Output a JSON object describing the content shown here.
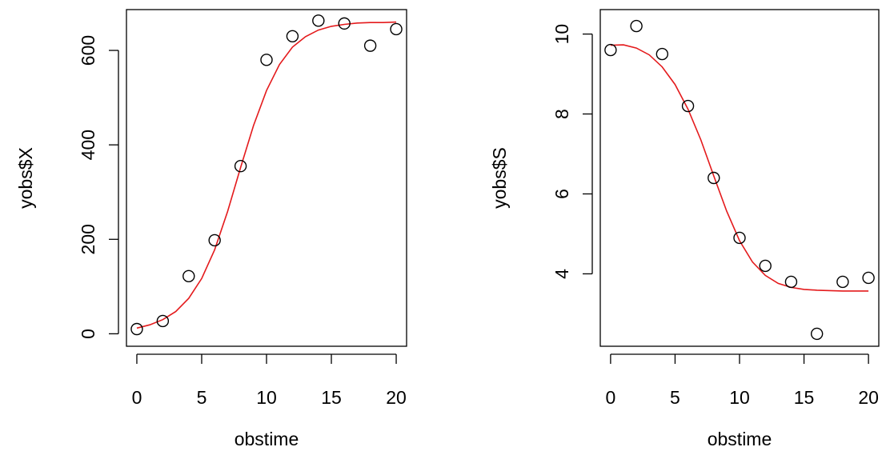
{
  "colors": {
    "fit": "#e41a1c",
    "points": "#000000"
  },
  "chart_data": [
    {
      "type": "scatter",
      "title": "",
      "xlabel": "obstime",
      "ylabel": "yobs$X",
      "xlim": [
        0,
        20
      ],
      "ylim": [
        0,
        660
      ],
      "x_ticks": [
        0,
        5,
        10,
        15,
        20
      ],
      "y_ticks": [
        0,
        200,
        400,
        600
      ],
      "grid": false,
      "legend": "none",
      "series": [
        {
          "kind": "points",
          "x": [
            0,
            2,
            4,
            6,
            8,
            10,
            12,
            14,
            16,
            18,
            20
          ],
          "y": [
            10,
            27,
            122,
            198,
            355,
            580,
            630,
            663,
            657,
            610,
            645
          ]
        },
        {
          "kind": "line",
          "color": "#e41a1c",
          "x": [
            0,
            1,
            2,
            3,
            4,
            5,
            6,
            7,
            8,
            9,
            10,
            11,
            12,
            13,
            14,
            15,
            16,
            17,
            18,
            19,
            20
          ],
          "y": [
            12,
            19,
            30,
            47,
            75,
            117,
            178,
            259,
            352,
            441,
            515,
            570,
            607,
            629,
            643,
            651,
            655,
            658,
            659,
            659,
            660
          ]
        }
      ]
    },
    {
      "type": "scatter",
      "title": "",
      "xlabel": "obstime",
      "ylabel": "yobs$S",
      "xlim": [
        0,
        20
      ],
      "ylim": [
        2.5,
        10.3
      ],
      "x_ticks": [
        0,
        5,
        10,
        15,
        20
      ],
      "y_ticks": [
        4,
        6,
        8,
        10
      ],
      "grid": false,
      "legend": "none",
      "series": [
        {
          "kind": "points",
          "x": [
            0,
            2,
            4,
            6,
            8,
            10,
            12,
            14,
            16,
            18,
            20
          ],
          "y": [
            9.6,
            10.2,
            9.5,
            8.2,
            6.4,
            4.9,
            4.2,
            3.8,
            2.5,
            3.8,
            3.9
          ]
        },
        {
          "kind": "line",
          "color": "#e41a1c",
          "x": [
            0,
            1,
            2,
            3,
            4,
            5,
            6,
            7,
            8,
            9,
            10,
            11,
            12,
            13,
            14,
            15,
            16,
            17,
            18,
            19,
            20
          ],
          "y": [
            9.72,
            9.73,
            9.65,
            9.48,
            9.18,
            8.74,
            8.12,
            7.35,
            6.45,
            5.57,
            4.83,
            4.3,
            3.96,
            3.76,
            3.66,
            3.61,
            3.59,
            3.58,
            3.57,
            3.57,
            3.57
          ]
        }
      ]
    }
  ]
}
